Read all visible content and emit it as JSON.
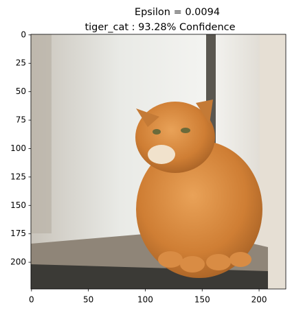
{
  "chart_data": {
    "type": "image",
    "title_lines": [
      "Epsilon = 0.0094",
      "tiger_cat : 93.28% Confidence"
    ],
    "xlim": [
      -0.5,
      223.5
    ],
    "ylim": [
      223.5,
      -0.5
    ],
    "xticks": [
      0,
      50,
      100,
      150,
      200
    ],
    "yticks": [
      0,
      25,
      50,
      75,
      100,
      125,
      150,
      175,
      200
    ]
  }
}
